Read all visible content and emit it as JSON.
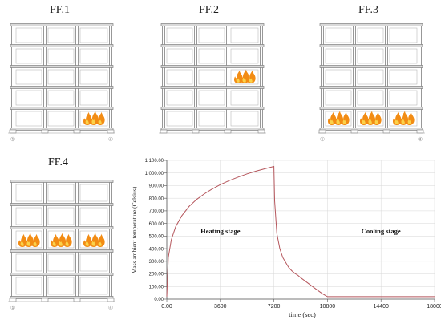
{
  "frames": [
    {
      "id": "ff1",
      "title": "FF.1",
      "fire_floor": 1,
      "fire_bays": [
        3
      ],
      "axis_left": "①",
      "axis_right": "④"
    },
    {
      "id": "ff2",
      "title": "FF.2",
      "fire_floor": 3,
      "fire_bays": [
        3
      ],
      "axis_left": "",
      "axis_right": ""
    },
    {
      "id": "ff3",
      "title": "FF.3",
      "fire_floor": 1,
      "fire_bays": [
        1,
        2,
        3
      ],
      "axis_left": "①",
      "axis_right": "④"
    },
    {
      "id": "ff4",
      "title": "FF.4",
      "fire_floor": 3,
      "fire_bays": [
        1,
        2,
        3
      ],
      "axis_left": "①",
      "axis_right": "④"
    }
  ],
  "colors": {
    "frame_line": "#7f7f7f",
    "slab_fill": "#d9d9d9",
    "fire_outer": "#f28c14",
    "fire_inner": "#fbd24a",
    "curve": "#b5565c",
    "grid": "#d7d7d7"
  },
  "chart_data": {
    "type": "line",
    "title": "",
    "xlabel": "time (sec)",
    "ylabel": "Mass ambient temperature (Celsius)",
    "xlim": [
      0,
      18000
    ],
    "ylim": [
      0,
      1100
    ],
    "xticks": [
      "0.00",
      "3600",
      "7200",
      "10800",
      "14400",
      "18000"
    ],
    "yticks": [
      "0.00",
      "100.00",
      "200.00",
      "300.00",
      "400.00",
      "500.00",
      "600.00",
      "700.00",
      "800.00",
      "900.00",
      "1 000.00",
      "1 100.00"
    ],
    "annotations": [
      {
        "text": "Heating stage",
        "x": 3600,
        "y": 520
      },
      {
        "text": "Cooling stage",
        "x": 14400,
        "y": 520
      }
    ],
    "series": [
      {
        "x": [
          0,
          100,
          300,
          600,
          1000,
          1500,
          2000,
          2500,
          3000,
          3600,
          4200,
          4800,
          5400,
          6000,
          6600,
          7200,
          7250,
          7400,
          7600,
          7800,
          8000,
          8200,
          8400,
          8600,
          8800,
          9000,
          9400,
          9800,
          10200,
          10500,
          10800,
          12000,
          14400,
          16200,
          18000
        ],
        "y": [
          20,
          330,
          470,
          575,
          660,
          735,
          790,
          833,
          870,
          908,
          940,
          968,
          993,
          1015,
          1034,
          1052,
          780,
          520,
          400,
          330,
          290,
          250,
          225,
          205,
          190,
          170,
          135,
          100,
          65,
          40,
          20,
          20,
          20,
          20,
          20
        ]
      }
    ]
  }
}
